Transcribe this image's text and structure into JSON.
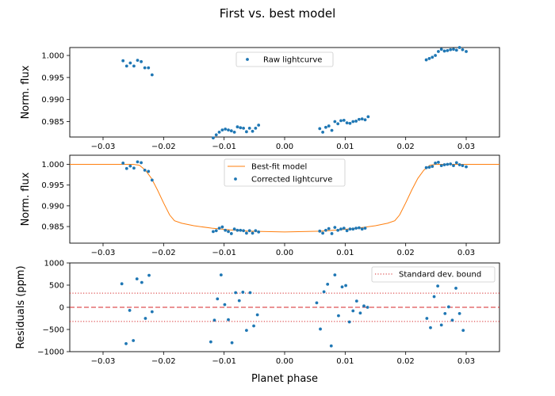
{
  "figure": {
    "title": "First vs. best model",
    "xlabel": "Planet phase"
  },
  "chart_data": [
    {
      "type": "scatter",
      "panel": "top",
      "ylabel": "Norm. flux",
      "xlim": [
        -0.0355,
        0.0355
      ],
      "ylim": [
        0.9815,
        1.0018
      ],
      "xticks": [
        -0.03,
        -0.02,
        -0.01,
        0.0,
        0.01,
        0.02,
        0.03
      ],
      "xtick_labels": [
        "−0.03",
        "−0.02",
        "−0.01",
        "0.00",
        "0.01",
        "0.02",
        "0.03"
      ],
      "yticks": [
        0.985,
        0.99,
        0.995,
        1.0
      ],
      "ytick_labels": [
        "0.985",
        "0.990",
        "0.995",
        "1.000"
      ],
      "legend": {
        "placement": "upper center",
        "entries": [
          {
            "label": "Raw lightcurve",
            "marker": "point"
          }
        ]
      },
      "series": [
        {
          "name": "Raw lightcurve",
          "color": "#1f77b4",
          "x": [
            -0.0267,
            -0.0261,
            -0.0255,
            -0.0249,
            -0.0243,
            -0.0237,
            -0.0231,
            -0.0225,
            -0.0219,
            -0.0118,
            -0.0113,
            -0.0108,
            -0.0103,
            -0.0098,
            -0.0093,
            -0.0088,
            -0.0083,
            -0.0078,
            -0.0073,
            -0.0068,
            -0.0063,
            -0.0058,
            -0.0053,
            -0.0048,
            -0.0043,
            0.0058,
            0.0063,
            0.0068,
            0.0073,
            0.0078,
            0.0083,
            0.0088,
            0.0093,
            0.0098,
            0.0103,
            0.0108,
            0.0113,
            0.0118,
            0.0123,
            0.0128,
            0.0133,
            0.0138,
            0.0234,
            0.0239,
            0.0244,
            0.0249,
            0.0254,
            0.0259,
            0.0264,
            0.0269,
            0.0274,
            0.0279,
            0.0284,
            0.0289,
            0.0294,
            0.03
          ],
          "y": [
            0.9988,
            0.9976,
            0.9983,
            0.9976,
            0.9989,
            0.9986,
            0.9972,
            0.9972,
            0.9956,
            0.9813,
            0.982,
            0.9826,
            0.9831,
            0.9833,
            0.9831,
            0.9829,
            0.9826,
            0.9838,
            0.9836,
            0.9835,
            0.9827,
            0.9835,
            0.9828,
            0.9835,
            0.9842,
            0.9834,
            0.9826,
            0.9837,
            0.984,
            0.983,
            0.985,
            0.9845,
            0.9852,
            0.9853,
            0.9847,
            0.9846,
            0.985,
            0.9851,
            0.9855,
            0.9856,
            0.9854,
            0.9861,
            0.999,
            0.9993,
            0.9996,
            1.0,
            1.0009,
            1.0014,
            1.001,
            1.0011,
            1.0013,
            1.0014,
            1.0012,
            1.0018,
            1.0013,
            1.0009
          ]
        }
      ]
    },
    {
      "type": "line+scatter",
      "panel": "middle",
      "ylabel": "Norm. flux",
      "xlim": [
        -0.0355,
        0.0355
      ],
      "ylim": [
        0.981,
        1.0022
      ],
      "xticks": [
        -0.03,
        -0.02,
        -0.01,
        0.0,
        0.01,
        0.02,
        0.03
      ],
      "xtick_labels": [
        "−0.03",
        "−0.02",
        "−0.01",
        "0.00",
        "0.01",
        "0.02",
        "0.03"
      ],
      "yticks": [
        0.985,
        0.99,
        0.995,
        1.0
      ],
      "ytick_labels": [
        "0.985",
        "0.990",
        "0.995",
        "1.000"
      ],
      "legend": {
        "placement": "upper center",
        "entries": [
          {
            "label": "Best-fit model",
            "marker": "line"
          },
          {
            "label": "Corrected lightcurve",
            "marker": "point"
          }
        ]
      },
      "series": [
        {
          "name": "Best-fit model",
          "type": "line",
          "color": "#ff7f0e",
          "x": [
            -0.0355,
            -0.025,
            -0.024,
            -0.023,
            -0.022,
            -0.021,
            -0.02,
            -0.019,
            -0.0182,
            -0.017,
            -0.015,
            -0.012,
            -0.009,
            -0.006,
            -0.003,
            0.0,
            0.003,
            0.006,
            0.009,
            0.012,
            0.015,
            0.017,
            0.0182,
            0.019,
            0.02,
            0.021,
            0.022,
            0.023,
            0.024,
            0.025,
            0.0355
          ],
          "y": [
            1.0,
            1.0,
            0.9998,
            0.9986,
            0.9966,
            0.9938,
            0.9907,
            0.9878,
            0.9864,
            0.9858,
            0.9852,
            0.9846,
            0.9842,
            0.9839,
            0.9838,
            0.9837,
            0.9838,
            0.9839,
            0.9842,
            0.9846,
            0.9852,
            0.9858,
            0.9864,
            0.9878,
            0.9907,
            0.9938,
            0.9966,
            0.9986,
            0.9998,
            1.0,
            1.0
          ]
        },
        {
          "name": "Corrected lightcurve",
          "type": "scatter",
          "color": "#1f77b4",
          "x": [
            -0.0267,
            -0.0261,
            -0.0255,
            -0.0249,
            -0.0243,
            -0.0237,
            -0.0231,
            -0.0225,
            -0.0219,
            -0.0118,
            -0.0113,
            -0.0108,
            -0.0103,
            -0.0098,
            -0.0093,
            -0.0088,
            -0.0083,
            -0.0078,
            -0.0073,
            -0.0068,
            -0.0063,
            -0.0058,
            -0.0053,
            -0.0048,
            -0.0043,
            0.0058,
            0.0063,
            0.0068,
            0.0073,
            0.0078,
            0.0083,
            0.0088,
            0.0093,
            0.0098,
            0.0103,
            0.0108,
            0.0113,
            0.0118,
            0.0123,
            0.0128,
            0.0133,
            0.0234,
            0.0239,
            0.0244,
            0.0249,
            0.0254,
            0.0259,
            0.0264,
            0.0269,
            0.0274,
            0.0279,
            0.0284,
            0.0289,
            0.0294,
            0.03
          ],
          "y": [
            1.0003,
            0.999,
            0.9996,
            0.9991,
            1.0006,
            1.0004,
            0.9986,
            0.9983,
            0.9962,
            0.9838,
            0.984,
            0.9846,
            0.9849,
            0.9841,
            0.9838,
            0.9833,
            0.9844,
            0.9841,
            0.9841,
            0.984,
            0.9834,
            0.984,
            0.9834,
            0.984,
            0.9837,
            0.9839,
            0.9834,
            0.9841,
            0.9845,
            0.9833,
            0.9848,
            0.9841,
            0.9844,
            0.9846,
            0.984,
            0.9844,
            0.9844,
            0.9846,
            0.9847,
            0.9844,
            0.9846,
            0.9992,
            0.9993,
            0.9995,
            1.0003,
            1.0005,
            0.9997,
            0.9999,
            1.0,
            1.0001,
            0.9997,
            1.0004,
            0.9999,
            0.9997,
            0.9994
          ]
        }
      ]
    },
    {
      "type": "scatter",
      "panel": "bottom",
      "ylabel": "Residuals (ppm)",
      "xlim": [
        -0.0355,
        0.0355
      ],
      "ylim": [
        -1000,
        1000
      ],
      "xticks": [
        -0.03,
        -0.02,
        -0.01,
        0.0,
        0.01,
        0.02,
        0.03
      ],
      "xtick_labels": [
        "−0.03",
        "−0.02",
        "−0.01",
        "0.00",
        "0.01",
        "0.02",
        "0.03"
      ],
      "yticks": [
        -1000,
        -500,
        0,
        500,
        1000
      ],
      "ytick_labels": [
        "−1000",
        "−500",
        "0",
        "500",
        "1000"
      ],
      "legend": {
        "placement": "upper right",
        "entries": [
          {
            "label": "Standard dev. bound",
            "marker": "dotted-line"
          }
        ]
      },
      "hlines": [
        {
          "name": "Standard dev. bound",
          "y": 320,
          "color": "#d62728",
          "style": "dotted"
        },
        {
          "name": "Standard dev. bound",
          "y": -320,
          "color": "#d62728",
          "style": "dotted"
        },
        {
          "name": "zero",
          "y": 0,
          "color": "#d62728",
          "style": "dashed"
        }
      ],
      "series": [
        {
          "name": "Residuals",
          "color": "#1f77b4",
          "x": [
            -0.0269,
            -0.0262,
            -0.0256,
            -0.025,
            -0.0244,
            -0.0236,
            -0.023,
            -0.0224,
            -0.0219,
            -0.0122,
            -0.0116,
            -0.0111,
            -0.0105,
            -0.0099,
            -0.0093,
            -0.0087,
            -0.0081,
            -0.0075,
            -0.0069,
            -0.0063,
            -0.0057,
            -0.0051,
            -0.0045,
            0.0053,
            0.0059,
            0.0065,
            0.0071,
            0.0077,
            0.0083,
            0.0089,
            0.0095,
            0.0101,
            0.0107,
            0.0113,
            0.0119,
            0.0125,
            0.0131,
            0.0137,
            0.0235,
            0.0241,
            0.0247,
            0.0253,
            0.0259,
            0.0265,
            0.0271,
            0.0277,
            0.0283,
            0.0289,
            0.0295
          ],
          "y": [
            530,
            -820,
            -70,
            -750,
            640,
            560,
            -250,
            720,
            -100,
            -780,
            -290,
            190,
            730,
            60,
            -280,
            -800,
            330,
            150,
            340,
            -520,
            330,
            -420,
            -170,
            100,
            -490,
            350,
            520,
            -870,
            730,
            -190,
            460,
            490,
            -330,
            -80,
            140,
            -130,
            30,
            0,
            -250,
            -460,
            240,
            480,
            -400,
            -140,
            10,
            -290,
            430,
            -140,
            -520
          ]
        }
      ]
    }
  ]
}
